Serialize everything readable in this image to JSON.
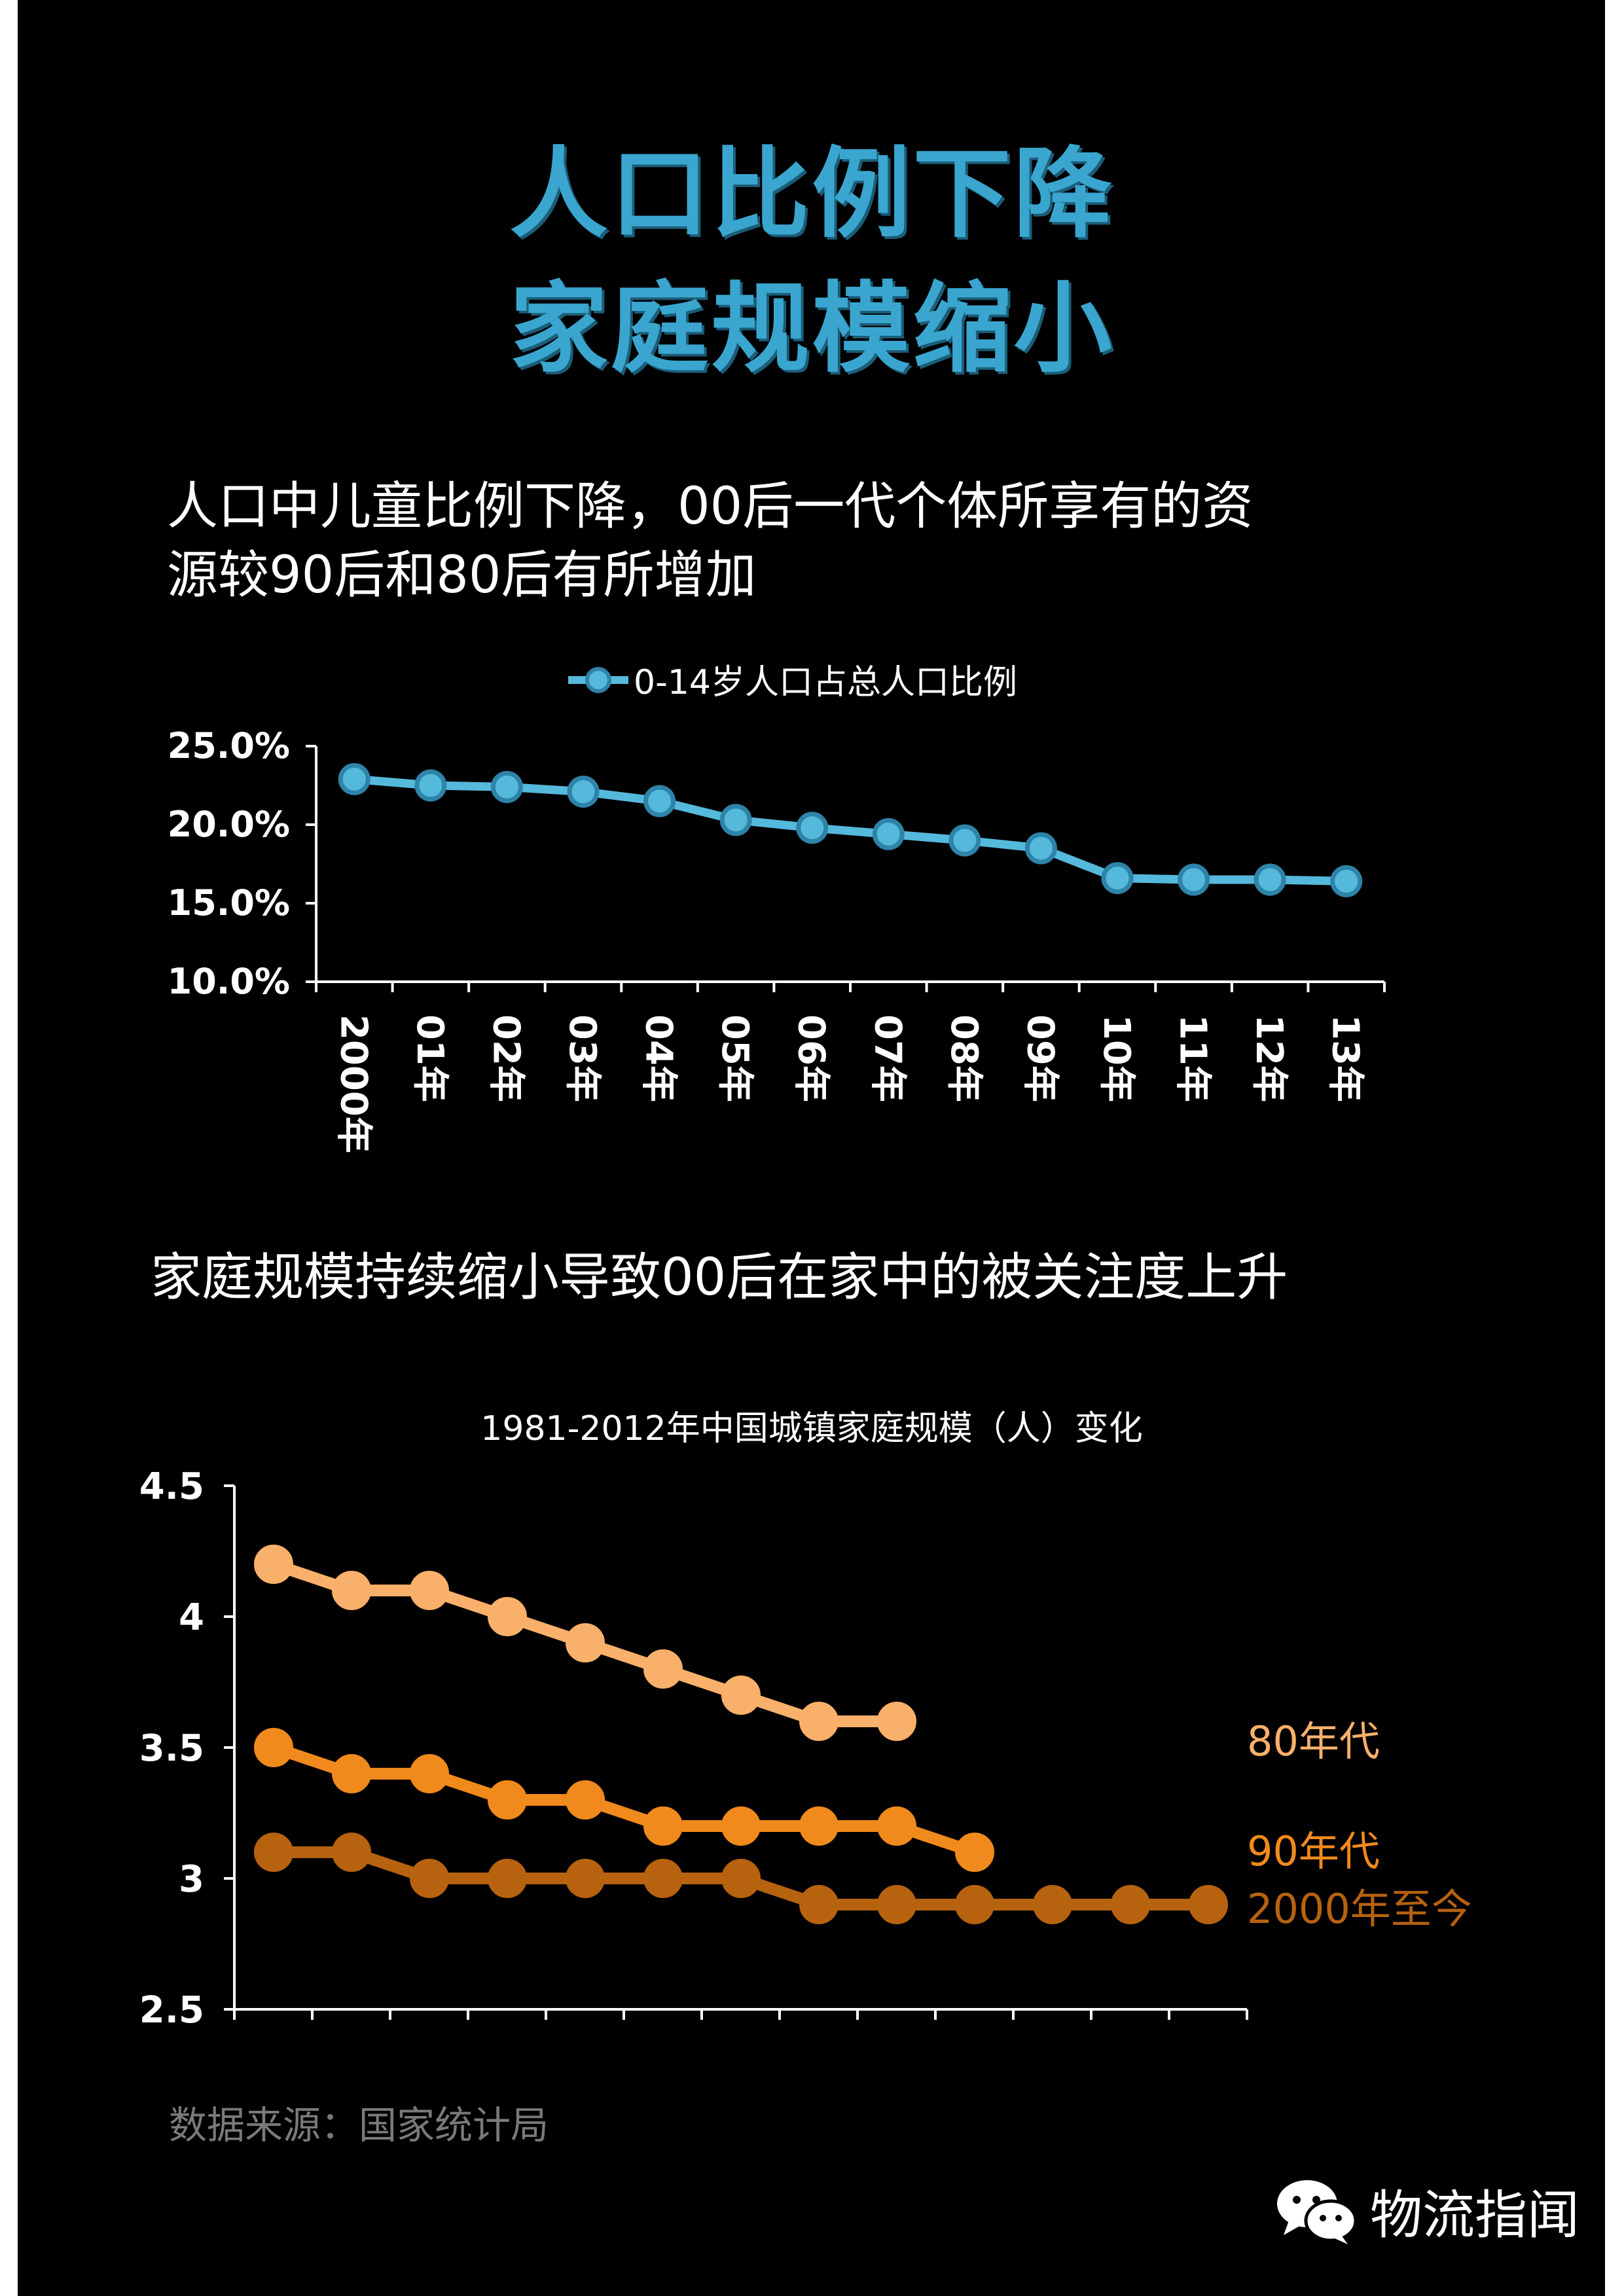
{
  "header": {
    "title_line1": "人口比例下降",
    "title_line2": "家庭规模缩小"
  },
  "section1": {
    "subtitle_line1": "人口中儿童比例下降，00后一代个体所享有的资",
    "subtitle_line2": "源较90后和80后有所增加"
  },
  "section2": {
    "subtitle": "家庭规模持续缩小导致00后在家中的被关注度上升"
  },
  "chart_data": [
    {
      "type": "line",
      "categories": [
        "2000年",
        "01年",
        "02年",
        "03年",
        "04年",
        "05年",
        "06年",
        "07年",
        "08年",
        "09年",
        "10年",
        "11年",
        "12年",
        "13年"
      ],
      "series": [
        {
          "name": "0-14岁人口占总人口比例",
          "color": "#55b9dc",
          "values": [
            22.9,
            22.5,
            22.4,
            22.1,
            21.5,
            20.3,
            19.8,
            19.4,
            19.0,
            18.5,
            16.6,
            16.5,
            16.5,
            16.4
          ]
        }
      ],
      "yticks": [
        "25.0%",
        "20.0%",
        "15.0%",
        "10.0%"
      ],
      "ylim": [
        10,
        25
      ],
      "legend": "top"
    },
    {
      "type": "line",
      "title": "1981-2012年中国城镇家庭规模（人）变化",
      "x_count": 13,
      "series": [
        {
          "name": "80年代",
          "color": "#f9b06a",
          "values": [
            4.2,
            4.1,
            4.1,
            4.0,
            3.9,
            3.8,
            3.7,
            3.6,
            3.6
          ]
        },
        {
          "name": "90年代",
          "color": "#f08a1c",
          "values": [
            3.5,
            3.4,
            3.4,
            3.3,
            3.3,
            3.2,
            3.2,
            3.2,
            3.2,
            3.1
          ]
        },
        {
          "name": "2000年至今",
          "color": "#b7620f",
          "values": [
            3.1,
            3.1,
            3.0,
            3.0,
            3.0,
            3.0,
            3.0,
            2.9,
            2.9,
            2.9,
            2.9,
            2.9,
            2.9
          ]
        }
      ],
      "yticks": [
        "4.5",
        "4",
        "3.5",
        "3",
        "2.5"
      ],
      "ylim": [
        2.5,
        4.5
      ],
      "legend": "right"
    }
  ],
  "footer": {
    "source": "数据来源：国家统计局",
    "logo_text": "物流指闻"
  }
}
